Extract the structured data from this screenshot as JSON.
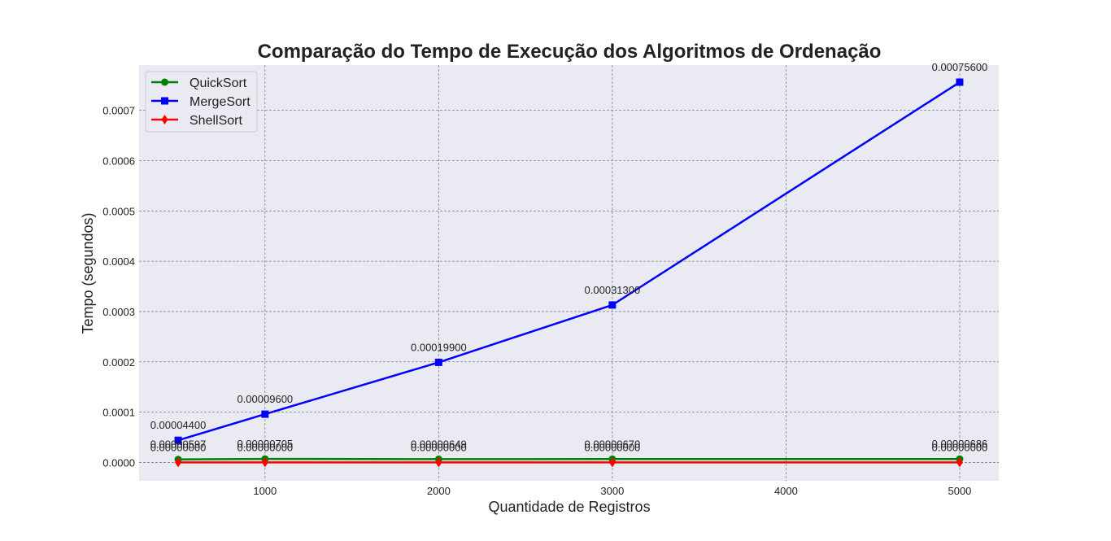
{
  "chart_data": {
    "type": "line",
    "title": "Comparação do Tempo de Execução dos Algoritmos de Ordenação",
    "xlabel": "Quantidade de Registros",
    "ylabel": "Tempo (segundos)",
    "x": [
      500,
      1000,
      2000,
      3000,
      5000
    ],
    "xlim": [
      275,
      5225
    ],
    "ylim": [
      -3.65e-05,
      0.00079
    ],
    "xticks": [
      1000,
      2000,
      3000,
      4000,
      5000
    ],
    "xtick_labels": [
      "1000",
      "2000",
      "3000",
      "4000",
      "5000"
    ],
    "yticks": [
      0,
      0.0001,
      0.0002,
      0.0003,
      0.0004,
      0.0005,
      0.0006,
      0.0007
    ],
    "ytick_labels": [
      "0.0000",
      "0.0001",
      "0.0002",
      "0.0003",
      "0.0004",
      "0.0005",
      "0.0006",
      "0.0007"
    ],
    "grid": true,
    "legend_position": "top-left",
    "series": [
      {
        "name": "QuickSort",
        "color": "#008000",
        "marker": "circle",
        "values": [
          5.97e-06,
          7.05e-06,
          6.49e-06,
          6.7e-06,
          6.86e-06
        ],
        "labels": [
          "0.00000597",
          "0.00000705",
          "0.00000649",
          "0.00000670",
          "0.00000686"
        ]
      },
      {
        "name": "MergeSort",
        "color": "#0000ff",
        "marker": "square",
        "values": [
          4.4e-05,
          9.6e-05,
          0.000199,
          0.000313,
          0.000756
        ],
        "labels": [
          "0.00004400",
          "0.00009600",
          "0.00019900",
          "0.00031300",
          "0.00075600"
        ]
      },
      {
        "name": "ShellSort",
        "color": "#ff0000",
        "marker": "diamond",
        "values": [
          0,
          0,
          0,
          0,
          0
        ],
        "labels": [
          "0.00000000",
          "0.00000000",
          "0.00000000",
          "0.00000000",
          "0.00000000"
        ]
      }
    ]
  },
  "colors": {
    "plot_background": "#eaeaf2",
    "grid": "#808080"
  }
}
